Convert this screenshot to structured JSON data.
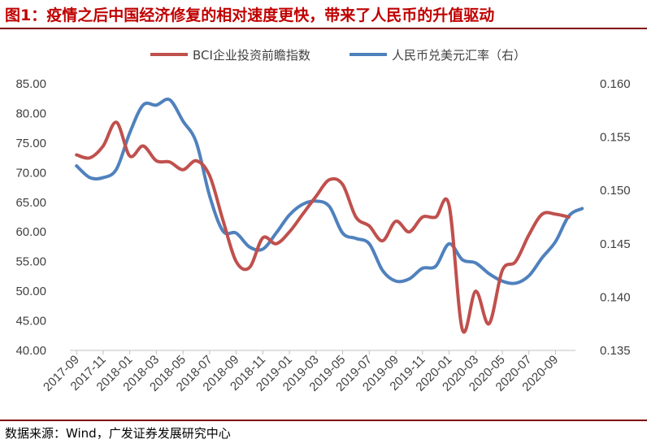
{
  "figure": {
    "title": "图1：疫情之后中国经济修复的相对速度更快，带来了人民币的升值驱动",
    "source": "数据来源：Wind，广发证券发展研究中心"
  },
  "chart_data": {
    "type": "line",
    "title": "图1：疫情之后中国经济修复的相对速度更快，带来了人民币的升值驱动",
    "xlabel": "",
    "ylabel": "",
    "x_tick_labels": [
      "2017-09",
      "2017-11",
      "2018-01",
      "2018-03",
      "2018-05",
      "2018-07",
      "2018-09",
      "2018-11",
      "2019-01",
      "2019-03",
      "2019-05",
      "2019-07",
      "2019-09",
      "2019-11",
      "2020-01",
      "2020-03",
      "2020-05",
      "2020-07",
      "2020-09"
    ],
    "left_axis": {
      "ylim": [
        40,
        85
      ],
      "ticks": [
        "40.00",
        "45.00",
        "50.00",
        "55.00",
        "60.00",
        "65.00",
        "70.00",
        "75.00",
        "80.00",
        "85.00"
      ]
    },
    "right_axis": {
      "ylim": [
        0.135,
        0.16
      ],
      "ticks": [
        "0.135",
        "0.140",
        "0.145",
        "0.150",
        "0.155",
        "0.160"
      ]
    },
    "legend_position": "top",
    "series": [
      {
        "name": "BCI企业投资前瞻指数",
        "axis": "left",
        "color": "#c0504d",
        "x": [
          0,
          1,
          2,
          3,
          4,
          5,
          6,
          7,
          8,
          9,
          10,
          11,
          12,
          13,
          14,
          15,
          16,
          17,
          18,
          19,
          20,
          21,
          22,
          23,
          24,
          25,
          26,
          27,
          28,
          29,
          30,
          31,
          32,
          33,
          34,
          35,
          36,
          37
        ],
        "values": [
          73.0,
          72.5,
          74.5,
          78.5,
          72.8,
          74.5,
          72.0,
          71.8,
          70.5,
          72.0,
          69.5,
          62.0,
          55.0,
          54.0,
          59.0,
          58.0,
          60.0,
          63.0,
          66.0,
          68.8,
          68.0,
          62.5,
          61.0,
          58.5,
          61.8,
          60.0,
          62.5,
          62.5,
          64.5,
          43.5,
          50.0,
          44.5,
          53.5,
          55.0,
          59.5,
          63.0,
          63.0,
          62.5
        ]
      },
      {
        "name": "人民币兑美元汇率（右）",
        "axis": "right",
        "color": "#4f81bd",
        "x": [
          0,
          1,
          2,
          3,
          4,
          5,
          6,
          7,
          8,
          9,
          10,
          11,
          12,
          13,
          14,
          15,
          16,
          17,
          18,
          19,
          20,
          21,
          22,
          23,
          24,
          25,
          26,
          27,
          28,
          29,
          30,
          31,
          32,
          33,
          34,
          35,
          36,
          37,
          38
        ],
        "values": [
          0.1523,
          0.1512,
          0.1512,
          0.152,
          0.1554,
          0.158,
          0.158,
          0.1585,
          0.1565,
          0.1545,
          0.1495,
          0.1462,
          0.146,
          0.1447,
          0.1445,
          0.146,
          0.1477,
          0.1487,
          0.149,
          0.1485,
          0.146,
          0.1455,
          0.145,
          0.1425,
          0.1415,
          0.1417,
          0.1427,
          0.1429,
          0.145,
          0.1435,
          0.1432,
          0.1422,
          0.1415,
          0.1413,
          0.142,
          0.1437,
          0.1452,
          0.1476,
          0.1483
        ]
      }
    ]
  }
}
